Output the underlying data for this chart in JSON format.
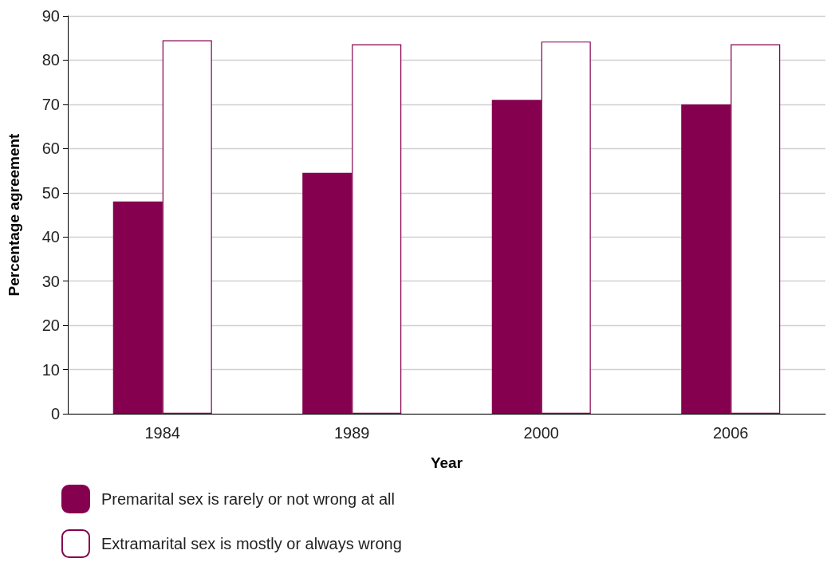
{
  "chart_data": {
    "type": "bar",
    "xlabel": "Year",
    "ylabel": "Percentage agreement",
    "categories": [
      "1984",
      "1989",
      "2000",
      "2006"
    ],
    "series": [
      {
        "name": "Premarital sex is rarely or not wrong at all",
        "color": "#85004f",
        "values": [
          48,
          54.5,
          71,
          70
        ]
      },
      {
        "name": "Extramarital sex is mostly or always wrong",
        "color": "#ffffff",
        "values": [
          84.5,
          83.6,
          84.2,
          83.6
        ]
      }
    ],
    "ylim": [
      0,
      90
    ],
    "yticks": [
      0,
      10,
      20,
      30,
      40,
      50,
      60,
      70,
      80,
      90
    ],
    "grid": "y",
    "legend": "bottom left"
  }
}
